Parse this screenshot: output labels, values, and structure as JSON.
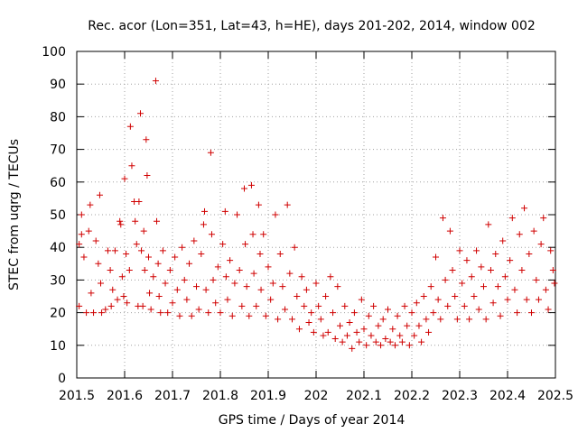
{
  "chart_data": {
    "type": "scatter",
    "title": "Rec. acor (Lon=351, Lat=43, h=HE), days 201-202, 2014, window 002",
    "xlabel": "GPS time / Days of year 2014",
    "ylabel": "STEC from uqrg / TECUs",
    "xlim": [
      201.5,
      202.5
    ],
    "ylim": [
      0,
      100
    ],
    "xticks": [
      "201.5",
      "201.6",
      "201.7",
      "201.8",
      "201.9",
      "202",
      "202.1",
      "202.2",
      "202.3",
      "202.4",
      "202.5"
    ],
    "yticks": [
      "0",
      "10",
      "20",
      "30",
      "40",
      "50",
      "60",
      "70",
      "80",
      "90",
      "100"
    ],
    "grid": true,
    "marker": "+",
    "color": "#d00000",
    "series": [
      {
        "name": "STEC",
        "points": [
          [
            201.505,
            41
          ],
          [
            201.505,
            22
          ],
          [
            201.51,
            50
          ],
          [
            201.51,
            44
          ],
          [
            201.515,
            37
          ],
          [
            201.52,
            20
          ],
          [
            201.525,
            45
          ],
          [
            201.528,
            53
          ],
          [
            201.53,
            26
          ],
          [
            201.535,
            20
          ],
          [
            201.54,
            42
          ],
          [
            201.545,
            35
          ],
          [
            201.548,
            56
          ],
          [
            201.55,
            29
          ],
          [
            201.552,
            20
          ],
          [
            201.56,
            21
          ],
          [
            201.565,
            39
          ],
          [
            201.57,
            33
          ],
          [
            201.572,
            22
          ],
          [
            201.575,
            27
          ],
          [
            201.58,
            39
          ],
          [
            201.585,
            24
          ],
          [
            201.59,
            48
          ],
          [
            201.592,
            47
          ],
          [
            201.595,
            31
          ],
          [
            201.598,
            25
          ],
          [
            201.6,
            61
          ],
          [
            201.603,
            38
          ],
          [
            201.605,
            23
          ],
          [
            201.61,
            33
          ],
          [
            201.612,
            77
          ],
          [
            201.615,
            65
          ],
          [
            201.62,
            54
          ],
          [
            201.622,
            48
          ],
          [
            201.625,
            41
          ],
          [
            201.628,
            22
          ],
          [
            201.63,
            54
          ],
          [
            201.633,
            81
          ],
          [
            201.635,
            39
          ],
          [
            201.638,
            22
          ],
          [
            201.64,
            45
          ],
          [
            201.642,
            33
          ],
          [
            201.645,
            73
          ],
          [
            201.647,
            62
          ],
          [
            201.65,
            37
          ],
          [
            201.652,
            26
          ],
          [
            201.655,
            21
          ],
          [
            201.66,
            31
          ],
          [
            201.665,
            91
          ],
          [
            201.667,
            48
          ],
          [
            201.67,
            35
          ],
          [
            201.672,
            25
          ],
          [
            201.675,
            20
          ],
          [
            201.68,
            39
          ],
          [
            201.685,
            29
          ],
          [
            201.69,
            20
          ],
          [
            201.695,
            33
          ],
          [
            201.7,
            23
          ],
          [
            201.705,
            37
          ],
          [
            201.71,
            27
          ],
          [
            201.715,
            19
          ],
          [
            201.72,
            40
          ],
          [
            201.725,
            30
          ],
          [
            201.73,
            24
          ],
          [
            201.735,
            35
          ],
          [
            201.74,
            19
          ],
          [
            201.745,
            42
          ],
          [
            201.75,
            28
          ],
          [
            201.755,
            21
          ],
          [
            201.76,
            38
          ],
          [
            201.765,
            47
          ],
          [
            201.767,
            51
          ],
          [
            201.77,
            27
          ],
          [
            201.775,
            20
          ],
          [
            201.78,
            69
          ],
          [
            201.782,
            44
          ],
          [
            201.785,
            30
          ],
          [
            201.79,
            23
          ],
          [
            201.795,
            34
          ],
          [
            201.8,
            20
          ],
          [
            201.805,
            41
          ],
          [
            201.81,
            51
          ],
          [
            201.812,
            31
          ],
          [
            201.815,
            24
          ],
          [
            201.82,
            36
          ],
          [
            201.825,
            19
          ],
          [
            201.83,
            29
          ],
          [
            201.835,
            50
          ],
          [
            201.84,
            33
          ],
          [
            201.845,
            22
          ],
          [
            201.85,
            58
          ],
          [
            201.852,
            41
          ],
          [
            201.855,
            28
          ],
          [
            201.86,
            19
          ],
          [
            201.865,
            59
          ],
          [
            201.868,
            44
          ],
          [
            201.87,
            32
          ],
          [
            201.875,
            22
          ],
          [
            201.88,
            53
          ],
          [
            201.883,
            38
          ],
          [
            201.885,
            27
          ],
          [
            201.89,
            44
          ],
          [
            201.895,
            19
          ],
          [
            201.9,
            34
          ],
          [
            201.905,
            24
          ],
          [
            201.91,
            29
          ],
          [
            201.915,
            50
          ],
          [
            201.92,
            18
          ],
          [
            201.925,
            38
          ],
          [
            201.93,
            28
          ],
          [
            201.935,
            21
          ],
          [
            201.94,
            53
          ],
          [
            201.945,
            32
          ],
          [
            201.95,
            18
          ],
          [
            201.955,
            40
          ],
          [
            201.96,
            25
          ],
          [
            201.965,
            15
          ],
          [
            201.97,
            31
          ],
          [
            201.975,
            22
          ],
          [
            201.98,
            27
          ],
          [
            201.985,
            17
          ],
          [
            201.99,
            20
          ],
          [
            201.995,
            14
          ],
          [
            202.0,
            29
          ],
          [
            202.005,
            22
          ],
          [
            202.01,
            18
          ],
          [
            202.015,
            13
          ],
          [
            202.02,
            25
          ],
          [
            202.025,
            14
          ],
          [
            202.03,
            31
          ],
          [
            202.035,
            20
          ],
          [
            202.04,
            12
          ],
          [
            202.045,
            28
          ],
          [
            202.05,
            16
          ],
          [
            202.055,
            11
          ],
          [
            202.06,
            22
          ],
          [
            202.065,
            13
          ],
          [
            202.07,
            17
          ],
          [
            202.075,
            9
          ],
          [
            202.08,
            20
          ],
          [
            202.085,
            14
          ],
          [
            202.09,
            11
          ],
          [
            202.095,
            24
          ],
          [
            202.1,
            15
          ],
          [
            202.105,
            10
          ],
          [
            202.11,
            19
          ],
          [
            202.115,
            13
          ],
          [
            202.12,
            22
          ],
          [
            202.125,
            11
          ],
          [
            202.13,
            16
          ],
          [
            202.135,
            10
          ],
          [
            202.14,
            18
          ],
          [
            202.145,
            12
          ],
          [
            202.15,
            21
          ],
          [
            202.155,
            11
          ],
          [
            202.16,
            15
          ],
          [
            202.165,
            10
          ],
          [
            202.17,
            19
          ],
          [
            202.175,
            13
          ],
          [
            202.18,
            11
          ],
          [
            202.185,
            22
          ],
          [
            202.19,
            16
          ],
          [
            202.195,
            10
          ],
          [
            202.2,
            20
          ],
          [
            202.205,
            13
          ],
          [
            202.21,
            23
          ],
          [
            202.215,
            16
          ],
          [
            202.22,
            11
          ],
          [
            202.225,
            25
          ],
          [
            202.23,
            18
          ],
          [
            202.235,
            14
          ],
          [
            202.24,
            28
          ],
          [
            202.245,
            20
          ],
          [
            202.25,
            37
          ],
          [
            202.255,
            24
          ],
          [
            202.26,
            18
          ],
          [
            202.265,
            49
          ],
          [
            202.27,
            30
          ],
          [
            202.275,
            22
          ],
          [
            202.28,
            45
          ],
          [
            202.285,
            33
          ],
          [
            202.29,
            25
          ],
          [
            202.295,
            18
          ],
          [
            202.3,
            39
          ],
          [
            202.305,
            29
          ],
          [
            202.31,
            22
          ],
          [
            202.315,
            36
          ],
          [
            202.32,
            18
          ],
          [
            202.325,
            31
          ],
          [
            202.33,
            25
          ],
          [
            202.335,
            39
          ],
          [
            202.34,
            21
          ],
          [
            202.345,
            34
          ],
          [
            202.35,
            28
          ],
          [
            202.355,
            18
          ],
          [
            202.36,
            47
          ],
          [
            202.365,
            33
          ],
          [
            202.37,
            23
          ],
          [
            202.375,
            38
          ],
          [
            202.38,
            28
          ],
          [
            202.385,
            19
          ],
          [
            202.39,
            42
          ],
          [
            202.395,
            31
          ],
          [
            202.4,
            24
          ],
          [
            202.405,
            36
          ],
          [
            202.41,
            49
          ],
          [
            202.415,
            27
          ],
          [
            202.42,
            20
          ],
          [
            202.425,
            44
          ],
          [
            202.43,
            33
          ],
          [
            202.435,
            52
          ],
          [
            202.44,
            24
          ],
          [
            202.445,
            38
          ],
          [
            202.45,
            20
          ],
          [
            202.455,
            45
          ],
          [
            202.46,
            30
          ],
          [
            202.465,
            24
          ],
          [
            202.47,
            41
          ],
          [
            202.475,
            49
          ],
          [
            202.48,
            27
          ],
          [
            202.485,
            21
          ],
          [
            202.49,
            39
          ],
          [
            202.495,
            33
          ],
          [
            202.498,
            29
          ]
        ]
      }
    ]
  }
}
